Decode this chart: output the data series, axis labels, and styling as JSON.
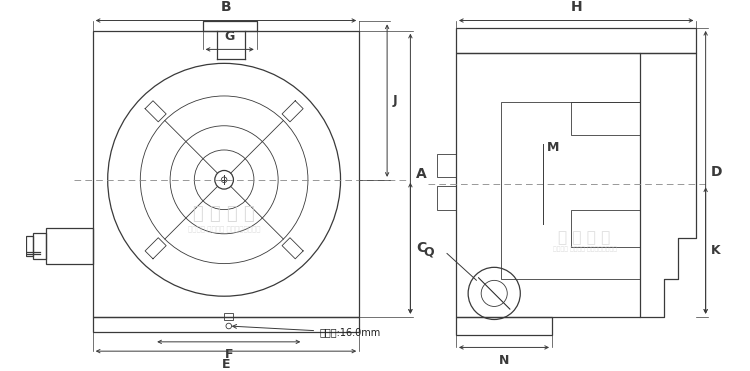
{
  "bg_color": "#ffffff",
  "line_color": "#3a3a3a",
  "wm_color": "#d0d0d0",
  "wm_text": "雄 鹰 精 机",
  "wm_sub": "服务至上 优质设备 品质保证技术专业",
  "pin_label": "定位销:16.0mm",
  "labels": {
    "A": "A",
    "B": "B",
    "C": "C",
    "D": "D",
    "E": "E",
    "F": "F",
    "G": "G",
    "H": "H",
    "J": "J",
    "K": "K",
    "M": "M",
    "N": "N",
    "Q": "Q"
  }
}
